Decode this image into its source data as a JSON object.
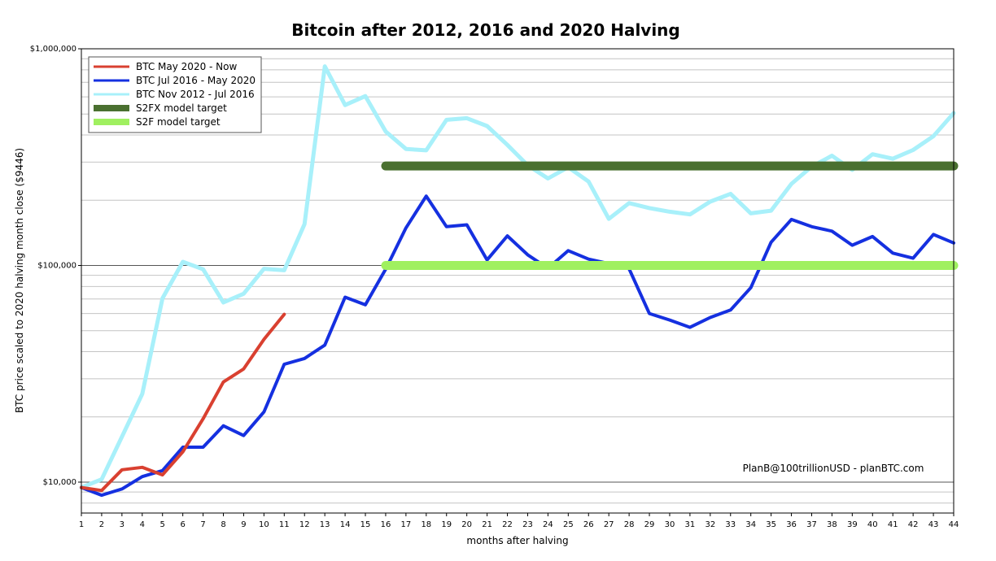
{
  "chart_data": {
    "type": "line",
    "title": "Bitcoin after 2012, 2016 and 2020 Halving",
    "xlabel": "months after halving",
    "ylabel": "BTC price scaled to 2020 halving month close ($9446)",
    "y_scale": "log",
    "xlim": [
      1,
      44
    ],
    "ylim": [
      7200,
      1000000
    ],
    "x_ticks": [
      1,
      2,
      3,
      4,
      5,
      6,
      7,
      8,
      9,
      10,
      11,
      12,
      13,
      14,
      15,
      16,
      17,
      18,
      19,
      20,
      21,
      22,
      23,
      24,
      25,
      26,
      27,
      28,
      29,
      30,
      31,
      32,
      33,
      34,
      35,
      36,
      37,
      38,
      39,
      40,
      41,
      42,
      43,
      44
    ],
    "y_ticks": [
      {
        "value": 10000,
        "label": "$10,000"
      },
      {
        "value": 100000,
        "label": "$100,000"
      },
      {
        "value": 1000000,
        "label": "$1,000,000"
      }
    ],
    "grid": true,
    "legend_position": "top-left",
    "watermark": "PlanB@100trillionUSD  -  planBTC.com",
    "series": [
      {
        "name": "BTC May 2020 - Now",
        "color": "#d94030",
        "width": 4,
        "x": [
          1,
          2,
          3,
          4,
          5,
          6,
          7,
          8,
          9,
          10,
          11
        ],
        "y": [
          9446,
          9150,
          11400,
          11700,
          10800,
          13800,
          19600,
          29000,
          33300,
          45600,
          59500
        ]
      },
      {
        "name": "BTC Jul 2016 - May 2020",
        "color": "#1530e0",
        "width": 4,
        "x": [
          1,
          2,
          3,
          4,
          5,
          6,
          7,
          8,
          9,
          10,
          11,
          12,
          13,
          14,
          15,
          16,
          17,
          18,
          19,
          20,
          21,
          22,
          23,
          24,
          25,
          26,
          27,
          28,
          29,
          30,
          31,
          32,
          33,
          34,
          35,
          36,
          37,
          38,
          39,
          40,
          41,
          42,
          43,
          44
        ],
        "y": [
          9446,
          8700,
          9300,
          10600,
          11300,
          14500,
          14500,
          18200,
          16400,
          21100,
          35000,
          37200,
          42900,
          71400,
          65800,
          96200,
          149000,
          209000,
          151000,
          154000,
          106000,
          137000,
          112000,
          97000,
          117000,
          107000,
          102000,
          96500,
          60000,
          56000,
          51800,
          57500,
          62300,
          79000,
          128000,
          163000,
          151000,
          144000,
          124000,
          136000,
          114000,
          108000,
          139000,
          127000
        ]
      },
      {
        "name": "BTC Nov 2012 - Jul 2016",
        "color": "#a8f0fa",
        "width": 5,
        "x": [
          1,
          2,
          3,
          4,
          5,
          6,
          7,
          8,
          9,
          10,
          11,
          12,
          13,
          14,
          15,
          16,
          17,
          18,
          19,
          20,
          21,
          22,
          23,
          24,
          25,
          26,
          27,
          28,
          29,
          30,
          31,
          32,
          33,
          34,
          35,
          36,
          37,
          38,
          39,
          40,
          41,
          42,
          43,
          44
        ],
        "y": [
          9446,
          10300,
          16200,
          25500,
          70500,
          104000,
          96000,
          67500,
          74000,
          96500,
          95000,
          155000,
          830000,
          550000,
          605000,
          415000,
          345000,
          340000,
          470000,
          478000,
          440000,
          360000,
          290000,
          252000,
          284000,
          244000,
          164000,
          194000,
          184000,
          177000,
          172000,
          197000,
          214000,
          174000,
          179000,
          238000,
          286000,
          321000,
          276000,
          326000,
          311000,
          341000,
          395000,
          505000
        ]
      },
      {
        "name": "S2FX model target",
        "color": "#4a7030",
        "width": 11,
        "x": [
          16,
          44
        ],
        "y": [
          288000,
          288000
        ]
      },
      {
        "name": "S2F model target",
        "color": "#a0f060",
        "width": 11,
        "x": [
          16,
          44
        ],
        "y": [
          100000,
          100000
        ]
      }
    ]
  }
}
